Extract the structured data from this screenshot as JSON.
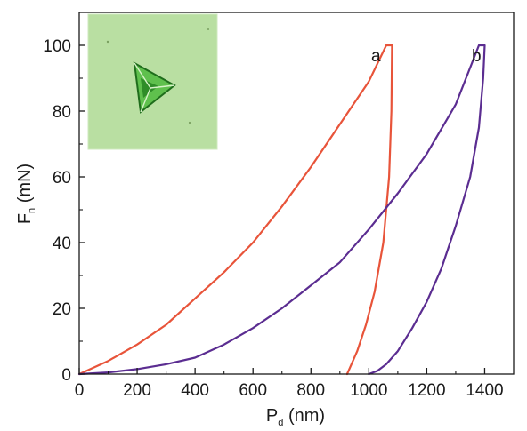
{
  "chart_data": {
    "type": "line",
    "xlabel": {
      "main": "P",
      "sub": "d",
      "unit": " (nm)"
    },
    "ylabel": {
      "main": "F",
      "sub": "n",
      "unit": " (mN)"
    },
    "xlim": [
      0,
      1500
    ],
    "ylim": [
      0,
      110
    ],
    "xticks": [
      0,
      200,
      400,
      600,
      800,
      1000,
      1200,
      1400
    ],
    "yticks": [
      0,
      20,
      40,
      60,
      80,
      100
    ],
    "grid": false,
    "inset": "optical micrograph of triangular indent",
    "colors": {
      "a": "#e8543a",
      "b": "#5b2d91",
      "inset_bg": "#b8dea0",
      "indent": "#2f9b2a"
    },
    "series": [
      {
        "name": "a",
        "color": "#e8543a",
        "x": [
          0,
          100,
          200,
          300,
          400,
          500,
          600,
          700,
          800,
          900,
          1000,
          1060,
          1080,
          1078,
          1070,
          1050,
          1020,
          990,
          960,
          935,
          925
        ],
        "y": [
          0,
          4,
          9,
          15,
          23,
          31,
          40,
          51,
          63,
          76,
          89,
          100,
          100,
          80,
          60,
          40,
          25,
          15,
          7,
          2,
          0
        ]
      },
      {
        "name": "b",
        "color": "#5b2d91",
        "x": [
          0,
          100,
          200,
          300,
          400,
          500,
          600,
          700,
          800,
          900,
          1000,
          1100,
          1200,
          1300,
          1380,
          1400,
          1395,
          1380,
          1350,
          1300,
          1250,
          1200,
          1150,
          1100,
          1060,
          1030,
          1000
        ],
        "y": [
          0,
          0.5,
          1.5,
          3,
          5,
          9,
          14,
          20,
          27,
          34,
          44,
          55,
          67,
          82,
          100,
          100,
          90,
          75,
          60,
          45,
          32,
          22,
          14,
          7,
          3,
          1,
          0
        ]
      }
    ]
  }
}
